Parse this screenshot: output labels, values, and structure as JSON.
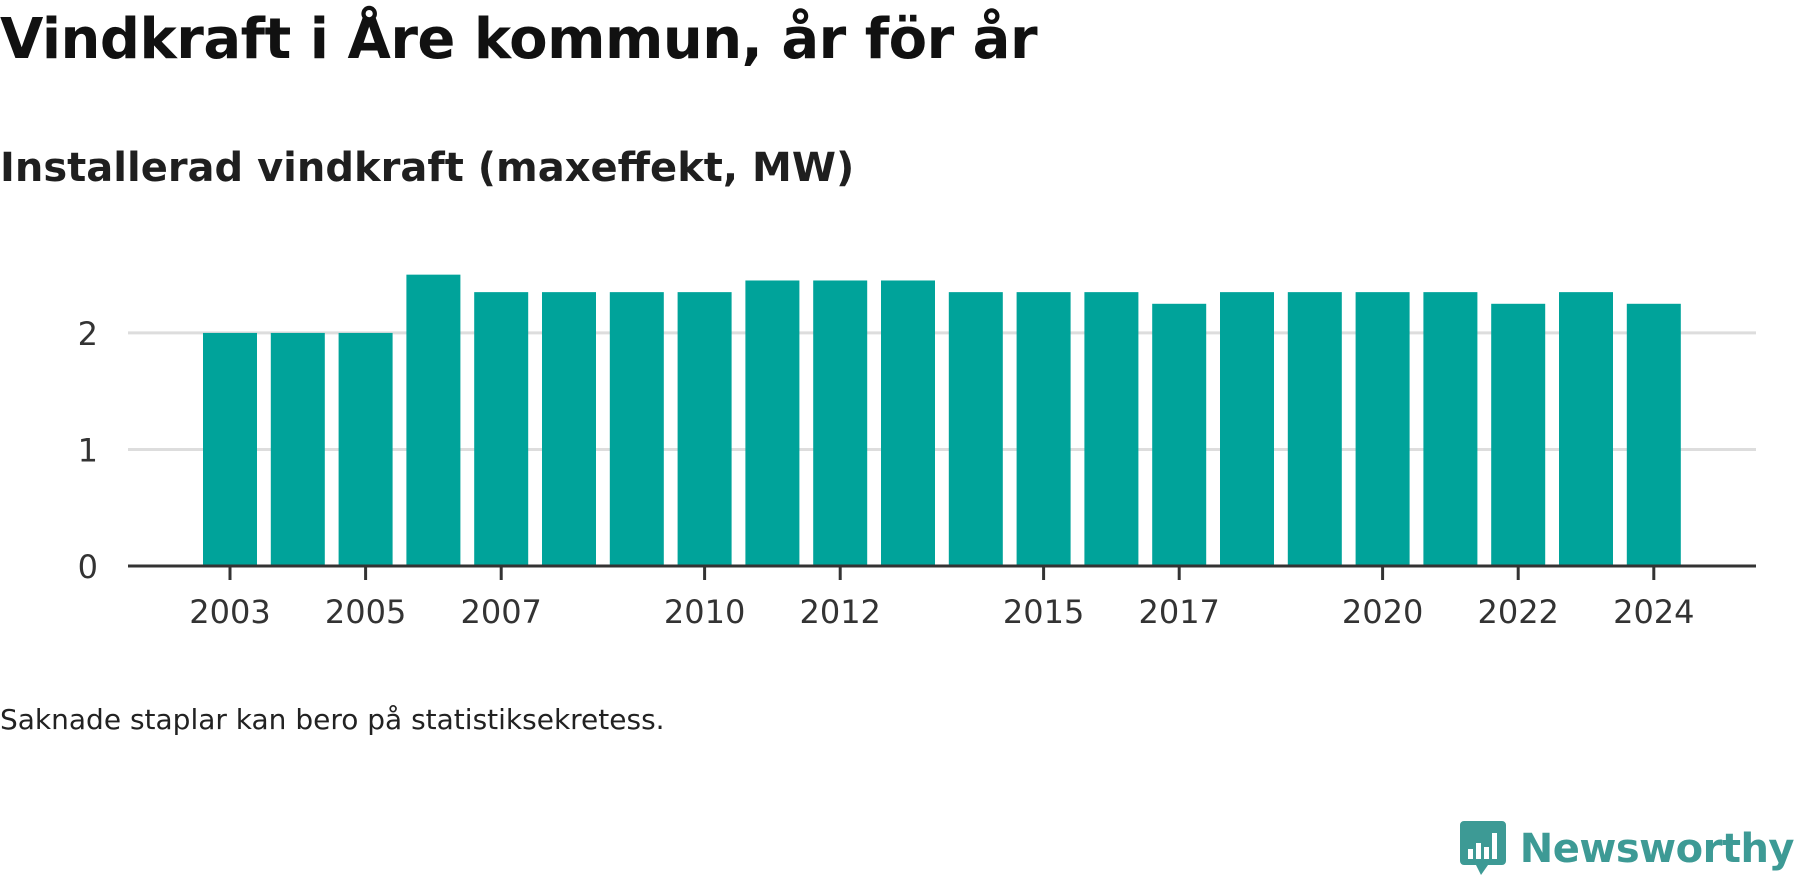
{
  "title": "Vindkraft i Åre kommun, år för år",
  "subtitle": "Installerad vindkraft (maxeffekt, MW)",
  "note": "Saknade staplar kan bero på statistiksekretess.",
  "brand": {
    "name": "Newsworthy",
    "logo_icon": "bar-chart-speech-bubble-icon",
    "color": "#3d9a95"
  },
  "chart_data": {
    "type": "bar",
    "categories": [
      "2003",
      "2004",
      "2005",
      "2006",
      "2007",
      "2008",
      "2009",
      "2010",
      "2011",
      "2012",
      "2013",
      "2014",
      "2015",
      "2016",
      "2017",
      "2018",
      "2019",
      "2020",
      "2021",
      "2022",
      "2023",
      "2024"
    ],
    "values": [
      2.0,
      2.0,
      2.0,
      2.5,
      2.35,
      2.35,
      2.35,
      2.35,
      2.45,
      2.45,
      2.45,
      2.35,
      2.35,
      2.35,
      2.25,
      2.35,
      2.35,
      2.35,
      2.35,
      2.25,
      2.35,
      2.25
    ],
    "x_tick_labels": [
      "2003",
      "2005",
      "2007",
      "2010",
      "2012",
      "2015",
      "2017",
      "2020",
      "2022",
      "2024"
    ],
    "y_ticks": [
      0,
      1,
      2
    ],
    "ylim": [
      0,
      2.6
    ],
    "grid": true,
    "bar_color": "#00a39a",
    "xlabel": "",
    "ylabel": ""
  }
}
